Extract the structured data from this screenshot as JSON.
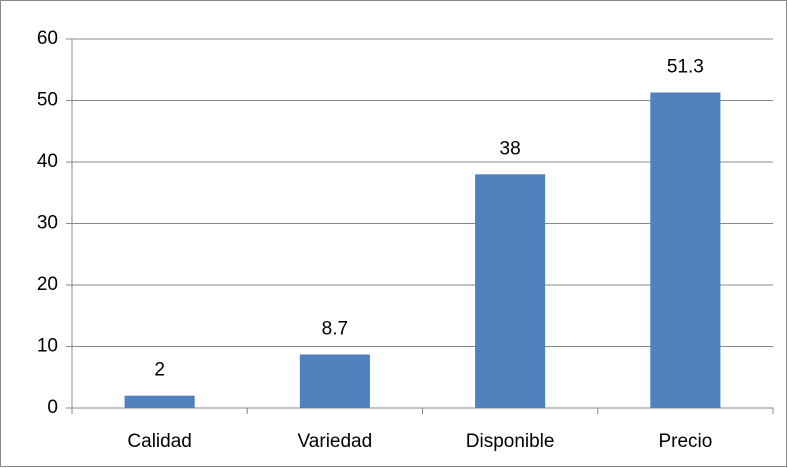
{
  "chart_data": {
    "type": "bar",
    "categories": [
      "Calidad",
      "Variedad",
      "Disponible",
      "Precio"
    ],
    "values": [
      2,
      8.7,
      38,
      51.3
    ],
    "color": "#4f81bd",
    "ylim": [
      0,
      60
    ],
    "yticks": [
      0,
      10,
      20,
      30,
      40,
      50,
      60
    ],
    "grid": true
  }
}
